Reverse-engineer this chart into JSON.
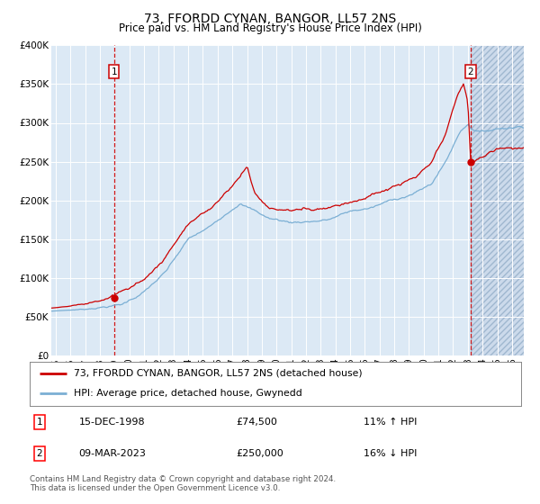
{
  "title": "73, FFORDD CYNAN, BANGOR, LL57 2NS",
  "subtitle": "Price paid vs. HM Land Registry's House Price Index (HPI)",
  "plot_bg_color": "#dce9f5",
  "hatch_bg_color": "#ccdaeb",
  "grid_color": "#ffffff",
  "red_line_color": "#cc0000",
  "blue_line_color": "#7bafd4",
  "sale1_date_num": 1998.96,
  "sale1_price": 74500,
  "sale2_date_num": 2023.19,
  "sale2_price": 250000,
  "ylim": [
    0,
    400000
  ],
  "xlim_start": 1994.7,
  "xlim_end": 2026.8,
  "xticks": [
    1995,
    1996,
    1997,
    1998,
    1999,
    2000,
    2001,
    2002,
    2003,
    2004,
    2005,
    2006,
    2007,
    2008,
    2009,
    2010,
    2011,
    2012,
    2013,
    2014,
    2015,
    2016,
    2017,
    2018,
    2019,
    2020,
    2021,
    2022,
    2023,
    2024,
    2025,
    2026
  ],
  "yticks": [
    0,
    50000,
    100000,
    150000,
    200000,
    250000,
    300000,
    350000,
    400000
  ],
  "ytick_labels": [
    "£0",
    "£50K",
    "£100K",
    "£150K",
    "£200K",
    "£250K",
    "£300K",
    "£350K",
    "£400K"
  ],
  "legend_label_red": "73, FFORDD CYNAN, BANGOR, LL57 2NS (detached house)",
  "legend_label_blue": "HPI: Average price, detached house, Gwynedd",
  "note1_date": "15-DEC-1998",
  "note1_price": "£74,500",
  "note1_hpi": "11% ↑ HPI",
  "note2_date": "09-MAR-2023",
  "note2_price": "£250,000",
  "note2_hpi": "16% ↓ HPI",
  "footer": "Contains HM Land Registry data © Crown copyright and database right 2024.\nThis data is licensed under the Open Government Licence v3.0."
}
